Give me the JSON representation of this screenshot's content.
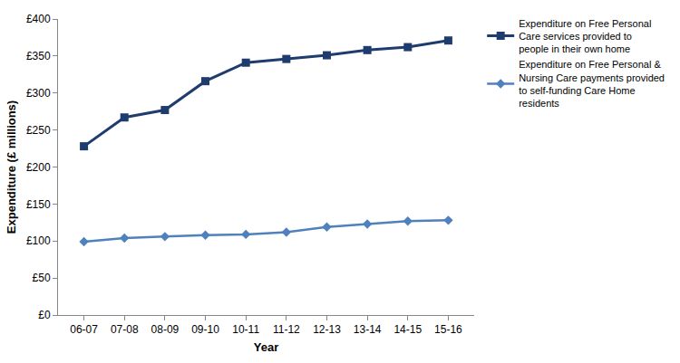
{
  "chart_data": {
    "type": "line",
    "x_label": "Year",
    "y_label": "Expenditure (£ millions)",
    "categories": [
      "06-07",
      "07-08",
      "08-09",
      "09-10",
      "10-11",
      "11-12",
      "12-13",
      "13-14",
      "14-15",
      "15-16"
    ],
    "series": [
      {
        "name": "Expenditure on Free Personal Care services provided to people in their own home",
        "color": "#1f3c6e",
        "marker": "square",
        "values": [
          228,
          267,
          277,
          316,
          341,
          346,
          351,
          358,
          362,
          371
        ]
      },
      {
        "name": "Expenditure on Free Personal & Nursing Care payments provided to self-funding Care Home residents",
        "color": "#4f81bd",
        "marker": "diamond",
        "values": [
          99,
          104,
          106,
          108,
          109,
          112,
          119,
          123,
          127,
          128
        ]
      }
    ],
    "ylim": [
      0,
      400
    ],
    "yticks": [
      {
        "value": 0,
        "label": "£0"
      },
      {
        "value": 50,
        "label": "£50"
      },
      {
        "value": 100,
        "label": "£100"
      },
      {
        "value": 150,
        "label": "£150"
      },
      {
        "value": 200,
        "label": "£200"
      },
      {
        "value": 250,
        "label": "£250"
      },
      {
        "value": 300,
        "label": "£300"
      },
      {
        "value": 350,
        "label": "£350"
      },
      {
        "value": 400,
        "label": "£400"
      }
    ],
    "grid": false,
    "legend": "right"
  }
}
